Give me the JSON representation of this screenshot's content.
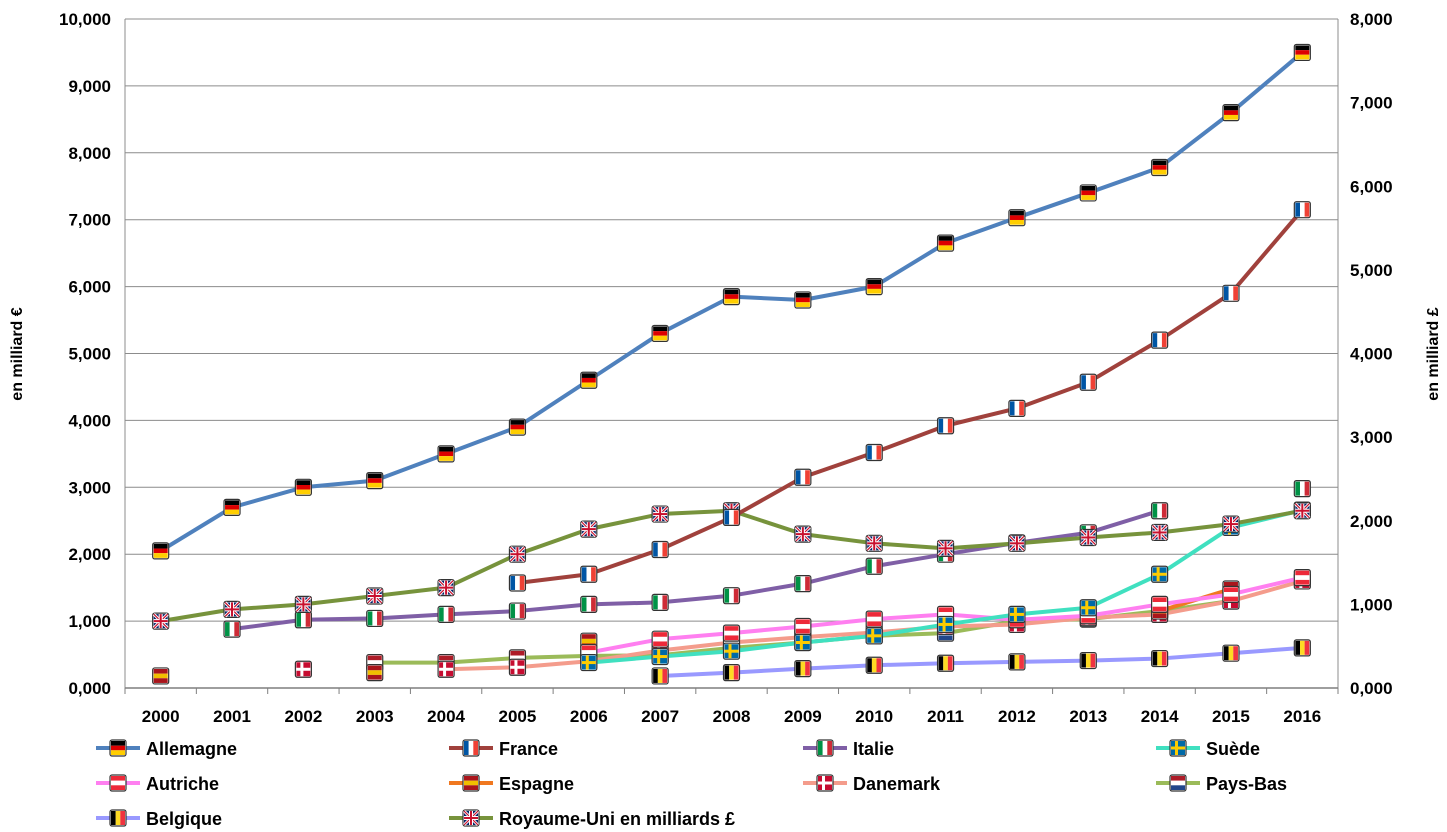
{
  "chart_data": {
    "type": "line",
    "title": "",
    "x": [
      2000,
      2001,
      2002,
      2003,
      2004,
      2005,
      2006,
      2007,
      2008,
      2009,
      2010,
      2011,
      2012,
      2013,
      2014,
      2015,
      2016
    ],
    "y_left": {
      "label": "en milliard €",
      "min": 0,
      "max": 10000,
      "step": 1000,
      "ticks": [
        "0,000",
        "1,000",
        "2,000",
        "3,000",
        "4,000",
        "5,000",
        "6,000",
        "7,000",
        "8,000",
        "9,000",
        "10,000"
      ]
    },
    "y_right": {
      "label": "en milliard £",
      "min": 0,
      "max": 8000,
      "step": 1000,
      "ticks": [
        "0,000",
        "1,000",
        "2,000",
        "3,000",
        "4,000",
        "5,000",
        "6,000",
        "7,000",
        "8,000"
      ]
    },
    "grid": "horizontal",
    "legend_position": "bottom",
    "series": [
      {
        "name": "Allemagne",
        "axis": "left",
        "color": "#4f81bd",
        "flag": [
          "#000000",
          "#dd0000",
          "#ffce00"
        ],
        "flag_style": "h3",
        "values": [
          2050,
          2700,
          3000,
          3100,
          3500,
          3900,
          4600,
          5300,
          5850,
          5800,
          6000,
          6650,
          7030,
          7400,
          7780,
          8600,
          9500
        ]
      },
      {
        "name": "France",
        "axis": "left",
        "color": "#a0413c",
        "flag": [
          "#0055a4",
          "#ffffff",
          "#ef4135"
        ],
        "flag_style": "v3",
        "values": [
          null,
          null,
          null,
          null,
          null,
          1570,
          1700,
          2070,
          2550,
          3150,
          3520,
          3920,
          4180,
          4570,
          5200,
          5900,
          7150
        ]
      },
      {
        "name": "Italie",
        "axis": "left",
        "color": "#7f5fa6",
        "flag": [
          "#009246",
          "#ffffff",
          "#ce2b37"
        ],
        "flag_style": "v3",
        "values": [
          null,
          880,
          1020,
          1040,
          1100,
          1150,
          1250,
          1280,
          1380,
          1560,
          1820,
          2000,
          2170,
          2320,
          2650,
          null,
          2980
        ]
      },
      {
        "name": "Suède",
        "axis": "left",
        "color": "#40e0c0",
        "flag": [
          "#006aa7",
          "#fecc00"
        ],
        "flag_style": "cross",
        "values": [
          null,
          null,
          null,
          null,
          null,
          null,
          380,
          470,
          550,
          680,
          780,
          950,
          1100,
          1200,
          1700,
          2400,
          2660
        ]
      },
      {
        "name": "Autriche",
        "axis": "left",
        "color": "#ff7ff0",
        "flag": [
          "#ed2939",
          "#ffffff",
          "#ed2939"
        ],
        "flag_style": "h3",
        "values": [
          null,
          null,
          null,
          null,
          null,
          null,
          530,
          730,
          820,
          920,
          1030,
          1100,
          1020,
          1080,
          1250,
          1400,
          1650
        ]
      },
      {
        "name": "Espagne",
        "axis": "left",
        "color": "#f07820",
        "flag": [
          "#aa151b",
          "#f1bf00",
          "#aa151b"
        ],
        "flag_style": "h3",
        "values": [
          180,
          null,
          null,
          230,
          null,
          null,
          700,
          null,
          null,
          850,
          null,
          null,
          null,
          null,
          1150,
          1480,
          null
        ]
      },
      {
        "name": "Danemark",
        "axis": "left",
        "color": "#f49c8c",
        "flag": [
          "#c60c30",
          "#ffffff"
        ],
        "flag_style": "cross",
        "values": [
          null,
          null,
          280,
          null,
          280,
          310,
          400,
          560,
          680,
          760,
          830,
          920,
          950,
          1050,
          1100,
          1300,
          1600
        ]
      },
      {
        "name": "Pays-Bas",
        "axis": "left",
        "color": "#9bbb59",
        "flag": [
          "#ae1c28",
          "#ffffff",
          "#21468b"
        ],
        "flag_style": "h3",
        "values": [
          null,
          null,
          null,
          380,
          380,
          450,
          480,
          490,
          600,
          680,
          780,
          820,
          1000,
          1030,
          1150,
          1300,
          null
        ]
      },
      {
        "name": "Belgique",
        "axis": "left",
        "color": "#9999ff",
        "flag": [
          "#000000",
          "#fdda24",
          "#ef3340"
        ],
        "flag_style": "v3",
        "values": [
          null,
          null,
          null,
          null,
          null,
          null,
          null,
          180,
          230,
          290,
          340,
          370,
          390,
          410,
          440,
          520,
          600
        ]
      },
      {
        "name": "Royaume-Uni en milliards £",
        "axis": "right",
        "color": "#77933c",
        "flag": [
          "#012169",
          "#ffffff",
          "#c8102e"
        ],
        "flag_style": "uk",
        "values": [
          800,
          940,
          1000,
          1100,
          1200,
          1600,
          1900,
          2080,
          2120,
          1840,
          1730,
          1670,
          1730,
          1800,
          1860,
          1960,
          2120
        ]
      }
    ]
  }
}
